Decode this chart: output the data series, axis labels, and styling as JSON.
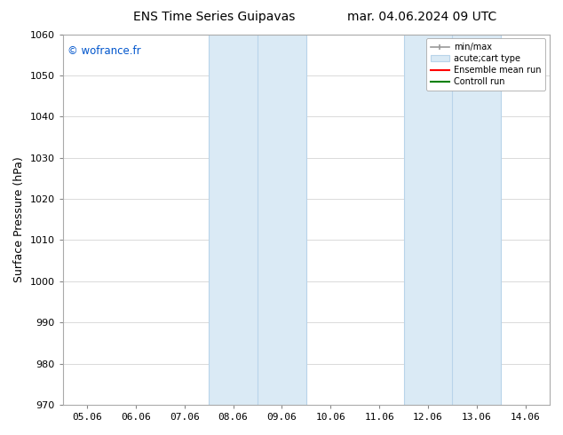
{
  "title_left": "ENS Time Series Guipavas",
  "title_right": "mar. 04.06.2024 09 UTC",
  "ylabel": "Surface Pressure (hPa)",
  "ylim": [
    970,
    1060
  ],
  "yticks": [
    970,
    980,
    990,
    1000,
    1010,
    1020,
    1030,
    1040,
    1050,
    1060
  ],
  "xlabels": [
    "05.06",
    "06.06",
    "07.06",
    "08.06",
    "09.06",
    "10.06",
    "11.06",
    "12.06",
    "13.06",
    "14.06"
  ],
  "xtick_positions": [
    0,
    1,
    2,
    3,
    4,
    5,
    6,
    7,
    8,
    9
  ],
  "x_total": 9,
  "watermark": "© wofrance.fr",
  "watermark_color": "#0055cc",
  "shaded_regions": [
    {
      "xmin": 3.0,
      "xmax": 4.0,
      "color": "#daeaf5",
      "edgecolor": "#b8d4ea"
    },
    {
      "xmin": 4.0,
      "xmax": 5.0,
      "color": "#daeaf5",
      "edgecolor": "#b8d4ea"
    },
    {
      "xmin": 7.0,
      "xmax": 8.0,
      "color": "#daeaf5",
      "edgecolor": "#b8d4ea"
    },
    {
      "xmin": 8.0,
      "xmax": 9.0,
      "color": "#daeaf5",
      "edgecolor": "#b8d4ea"
    }
  ],
  "background_color": "#ffffff",
  "plot_bg_color": "#ffffff",
  "grid_color": "#cccccc",
  "legend_entries": [
    {
      "label": "min/max"
    },
    {
      "label": "acute;cart type"
    },
    {
      "label": "Ensemble mean run"
    },
    {
      "label": "Controll run"
    }
  ],
  "minmax_color": "#999999",
  "acute_color": "#daeaf5",
  "acute_edge_color": "#b8d4ea",
  "ensemble_color": "#ff0000",
  "control_color": "#008000",
  "title_fontsize": 10,
  "axis_fontsize": 9,
  "tick_fontsize": 8,
  "legend_fontsize": 7
}
